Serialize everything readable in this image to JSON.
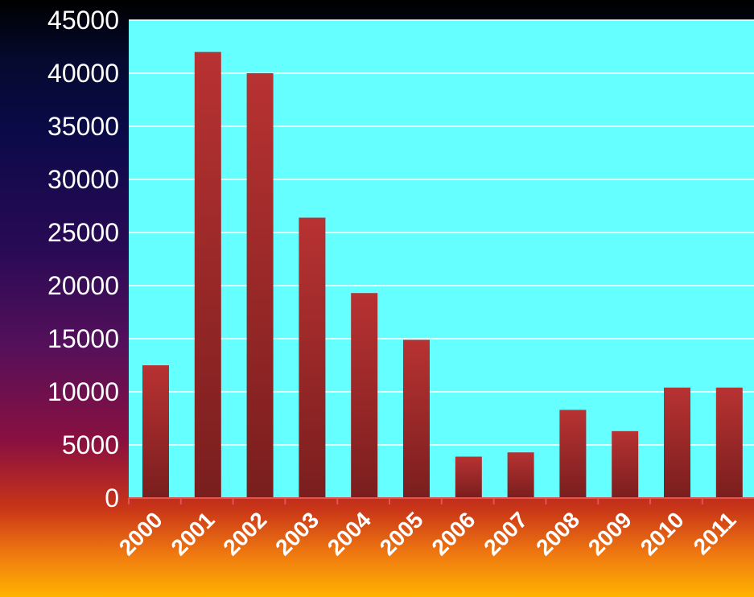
{
  "chart_data": {
    "type": "bar",
    "categories": [
      "2000",
      "2001",
      "2002",
      "2003",
      "2004",
      "2005",
      "2006",
      "2007",
      "2008",
      "2009",
      "2010",
      "2011"
    ],
    "values": [
      12500,
      42000,
      40000,
      26400,
      19300,
      14900,
      3900,
      4300,
      8300,
      6300,
      10400,
      10400
    ],
    "ylim": [
      0,
      45000
    ],
    "yticks": [
      "0",
      "5000",
      "10000",
      "15000",
      "20000",
      "25000",
      "30000",
      "35000",
      "40000",
      "45000"
    ],
    "grid": true,
    "legend": "none"
  },
  "colors": {
    "plot_background": "#66ffff",
    "bar_top": "#b83232",
    "bar_bottom": "#7a1e1e",
    "gridline": "#ffffff",
    "text": "#ffffff"
  }
}
